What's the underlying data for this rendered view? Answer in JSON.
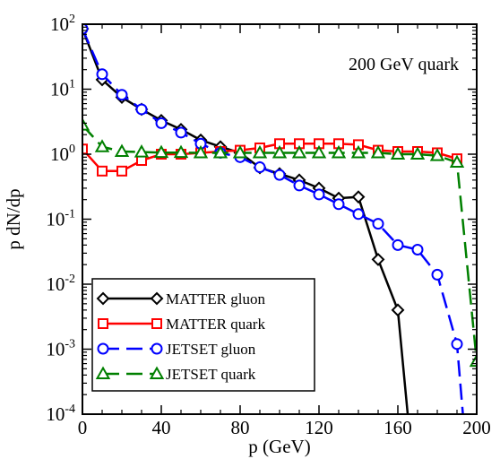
{
  "chart_data": {
    "type": "line",
    "annotation": "200 GeV quark",
    "xlabel": "p (GeV)",
    "ylabel": "p dN/dp",
    "xlim": [
      0,
      200
    ],
    "ylim": [
      0.0001,
      100
    ],
    "yscale": "log",
    "grid": false,
    "legend_position": "bottom-left",
    "x_ticks": [
      {
        "value": 0,
        "label": "0"
      },
      {
        "value": 40,
        "label": "40"
      },
      {
        "value": 80,
        "label": "80"
      },
      {
        "value": 120,
        "label": "120"
      },
      {
        "value": 160,
        "label": "160"
      },
      {
        "value": 200,
        "label": "200"
      }
    ],
    "y_ticks": [
      {
        "value": 100,
        "base": "10",
        "exp": "2"
      },
      {
        "value": 10,
        "base": "10",
        "exp": "1"
      },
      {
        "value": 1,
        "base": "10",
        "exp": "0"
      },
      {
        "value": 0.1,
        "base": "10",
        "exp": "-1"
      },
      {
        "value": 0.01,
        "base": "10",
        "exp": "-2"
      },
      {
        "value": 0.001,
        "base": "10",
        "exp": "-3"
      },
      {
        "value": 0.0001,
        "base": "10",
        "exp": "-4"
      }
    ],
    "series": [
      {
        "name": "MATTER gluon",
        "color": "#000000",
        "marker": "diamond",
        "dash": "solid",
        "points": [
          [
            0,
            85
          ],
          [
            10,
            14
          ],
          [
            20,
            7.5
          ],
          [
            30,
            4.9
          ],
          [
            40,
            3.3
          ],
          [
            50,
            2.4
          ],
          [
            60,
            1.65
          ],
          [
            70,
            1.3
          ],
          [
            80,
            1.05
          ],
          [
            90,
            0.62
          ],
          [
            100,
            0.5
          ],
          [
            110,
            0.4
          ],
          [
            120,
            0.3
          ],
          [
            130,
            0.21
          ],
          [
            140,
            0.22
          ],
          [
            150,
            0.024
          ],
          [
            160,
            0.004
          ]
        ],
        "extend_to": [
          165,
          0.0001
        ]
      },
      {
        "name": "MATTER quark",
        "color": "#ff0000",
        "marker": "square",
        "dash": "solid",
        "points": [
          [
            0,
            1.2
          ],
          [
            10,
            0.55
          ],
          [
            20,
            0.55
          ],
          [
            30,
            0.8
          ],
          [
            40,
            1.0
          ],
          [
            50,
            1.0
          ],
          [
            60,
            1.05
          ],
          [
            70,
            1.1
          ],
          [
            80,
            1.15
          ],
          [
            90,
            1.25
          ],
          [
            100,
            1.45
          ],
          [
            110,
            1.45
          ],
          [
            120,
            1.45
          ],
          [
            130,
            1.45
          ],
          [
            140,
            1.4
          ],
          [
            150,
            1.15
          ],
          [
            160,
            1.1
          ],
          [
            170,
            1.1
          ],
          [
            180,
            1.05
          ],
          [
            190,
            0.85
          ]
        ]
      },
      {
        "name": "JETSET gluon",
        "color": "#0000ff",
        "marker": "circle",
        "dash": "dashed",
        "points": [
          [
            0,
            85
          ],
          [
            10,
            17
          ],
          [
            20,
            8.2
          ],
          [
            30,
            4.9
          ],
          [
            40,
            3.0
          ],
          [
            50,
            2.15
          ],
          [
            60,
            1.45
          ],
          [
            70,
            1.05
          ],
          [
            80,
            0.9
          ],
          [
            90,
            0.63
          ],
          [
            100,
            0.48
          ],
          [
            110,
            0.33
          ],
          [
            120,
            0.24
          ],
          [
            130,
            0.17
          ],
          [
            140,
            0.12
          ],
          [
            150,
            0.085
          ],
          [
            160,
            0.04
          ],
          [
            170,
            0.034
          ],
          [
            180,
            0.014
          ],
          [
            190,
            0.0012
          ]
        ],
        "extend_to": [
          193,
          0.0001
        ]
      },
      {
        "name": "JETSET quark",
        "color": "#008000",
        "marker": "triangle",
        "dash": "dashed",
        "points": [
          [
            0,
            2.8
          ],
          [
            10,
            1.3
          ],
          [
            20,
            1.1
          ],
          [
            30,
            1.08
          ],
          [
            40,
            1.06
          ],
          [
            50,
            1.06
          ],
          [
            60,
            1.05
          ],
          [
            70,
            1.05
          ],
          [
            80,
            1.05
          ],
          [
            90,
            1.05
          ],
          [
            100,
            1.05
          ],
          [
            110,
            1.05
          ],
          [
            120,
            1.05
          ],
          [
            130,
            1.05
          ],
          [
            140,
            1.05
          ],
          [
            150,
            1.05
          ],
          [
            160,
            1.0
          ],
          [
            170,
            1.0
          ],
          [
            180,
            0.95
          ],
          [
            190,
            0.75
          ],
          [
            200,
            0.00065
          ]
        ]
      }
    ]
  }
}
